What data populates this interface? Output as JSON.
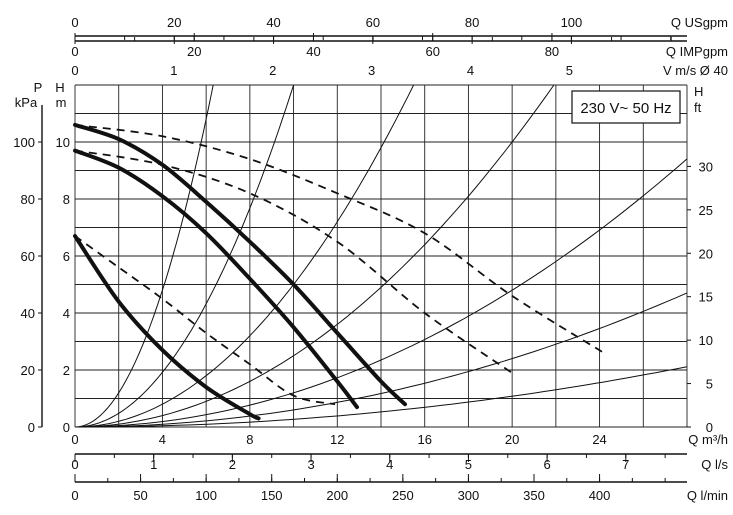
{
  "chart_data": {
    "type": "line",
    "badge": "230 V~ 50 Hz",
    "x": {
      "label": "Q m³/h",
      "range": [
        0,
        28
      ],
      "ticks": [
        0,
        4,
        8,
        12,
        16,
        20,
        24
      ],
      "tick_labels": [
        "0",
        "4",
        "8",
        "12",
        "16",
        "20",
        "24"
      ]
    },
    "y_left_H": {
      "label_top": "H",
      "label_unit": "m",
      "range": [
        0,
        12
      ],
      "ticks": [
        0,
        2,
        4,
        6,
        8,
        10
      ],
      "tick_labels": [
        "0",
        "2",
        "4",
        "6",
        "8",
        "10"
      ]
    },
    "y_left_P": {
      "label_top": "P",
      "label_unit": "kPa",
      "range": [
        0,
        120
      ],
      "ticks": [
        0,
        20,
        40,
        60,
        80,
        100
      ],
      "tick_labels": [
        "0",
        "20",
        "40",
        "60",
        "80",
        "100"
      ]
    },
    "y_right_ft": {
      "label_top": "H",
      "label_unit": "ft",
      "range": [
        0,
        39.37
      ],
      "ticks": [
        0,
        5,
        10,
        15,
        20,
        25,
        30
      ],
      "tick_labels": [
        "0",
        "5",
        "10",
        "15",
        "20",
        "25",
        "30"
      ]
    },
    "top_axes": [
      {
        "label": "Q USgpm",
        "factor": 4.4029,
        "ticks": [
          0,
          20,
          40,
          60,
          80,
          100
        ],
        "tick_labels": [
          "0",
          "20",
          "40",
          "60",
          "80",
          "100"
        ],
        "minor_step": 10
      },
      {
        "label": "Q IMPgpm",
        "factor": 3.6662,
        "ticks": [
          0,
          20,
          40,
          60,
          80
        ],
        "tick_labels": [
          "0",
          "20",
          "40",
          "60",
          "80"
        ],
        "minor_step": 10
      },
      {
        "label": "V m/s Ø 40",
        "factor": 0.22105,
        "ticks": [
          0,
          1,
          2,
          3,
          4,
          5
        ],
        "tick_labels": [
          "0",
          "1",
          "2",
          "3",
          "4",
          "5"
        ],
        "minor_step": 0.5
      }
    ],
    "bottom_axes": [
      {
        "label": "Q l/s",
        "factor": 0.27778,
        "ticks": [
          0,
          1,
          2,
          3,
          4,
          5,
          6,
          7
        ],
        "tick_labels": [
          "0",
          "1",
          "2",
          "3",
          "4",
          "5",
          "6",
          "7"
        ],
        "minor_step": 0.5
      },
      {
        "label": "Q l/min",
        "factor": 16.667,
        "ticks": [
          0,
          50,
          100,
          150,
          200,
          250,
          300,
          350,
          400
        ],
        "tick_labels": [
          "0",
          "50",
          "100",
          "150",
          "200",
          "250",
          "300",
          "350",
          "400"
        ],
        "minor_step": 25
      }
    ],
    "pump_curves_solid": [
      {
        "x": [
          0,
          2,
          4,
          6,
          8,
          8.4
        ],
        "y": [
          6.7,
          4.4,
          2.7,
          1.4,
          0.45,
          0.3
        ]
      },
      {
        "x": [
          0,
          2,
          4,
          6,
          8,
          10,
          12,
          12.9
        ],
        "y": [
          9.7,
          9.1,
          8.1,
          6.8,
          5.2,
          3.5,
          1.6,
          0.7
        ]
      },
      {
        "x": [
          0,
          2,
          4,
          6,
          8,
          10,
          12,
          14,
          15.1
        ],
        "y": [
          10.6,
          10.1,
          9.2,
          7.9,
          6.5,
          5.0,
          3.3,
          1.6,
          0.8
        ]
      }
    ],
    "pump_curves_dashed": [
      {
        "x": [
          0,
          2,
          4,
          6,
          8,
          10,
          11.9
        ],
        "y": [
          6.7,
          5.6,
          4.5,
          3.3,
          2.2,
          1.1,
          0.8
        ]
      },
      {
        "x": [
          0,
          4,
          8,
          12,
          16,
          20
        ],
        "y": [
          9.7,
          9.2,
          8.2,
          6.5,
          4.0,
          1.9
        ]
      },
      {
        "x": [
          0,
          4,
          8,
          12,
          16,
          20,
          24.2
        ],
        "y": [
          10.6,
          10.2,
          9.4,
          8.2,
          6.8,
          4.6,
          2.6
        ]
      }
    ],
    "system_curves": [
      {
        "coefficient": 0.3
      },
      {
        "coefficient": 0.12
      },
      {
        "coefficient": 0.05
      },
      {
        "coefficient": 0.025
      },
      {
        "coefficient": 0.012
      },
      {
        "coefficient": 0.006
      },
      {
        "coefficient": 0.0027
      }
    ],
    "grid": true
  }
}
